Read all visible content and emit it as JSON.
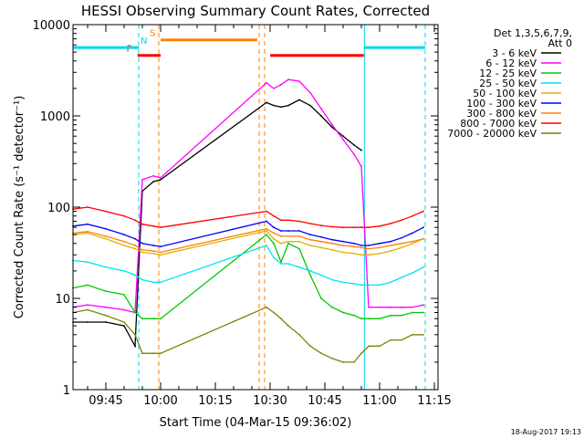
{
  "chart_data": {
    "type": "line",
    "title": "HESSI Observing Summary Count Rates, Corrected",
    "xlabel": "Start Time (04-Mar-15 09:36:02)",
    "ylabel": "Corrected Count Rate (s⁻¹ detector⁻¹)",
    "yscale": "log",
    "ylim": [
      1,
      10000
    ],
    "xlim_minutes_of_day": [
      576,
      676
    ],
    "x_ticks": [
      "09:45",
      "10:00",
      "10:15",
      "10:30",
      "10:45",
      "11:00",
      "11:15"
    ],
    "y_ticks": [
      "1",
      "10",
      "100",
      "1000",
      "10000"
    ],
    "legend_header": [
      "Det 1,3,5,6,7,9,",
      "Att 0"
    ],
    "legend_position": "right",
    "footer": "18-Aug-2017 19:13",
    "flags": [
      {
        "label": "F",
        "color": "#ff0000",
        "level": 4600,
        "segments": [
          [
            "09:53:40",
            "10:00:00"
          ],
          [
            "10:30:00",
            "10:55:40"
          ]
        ]
      },
      {
        "label": "N",
        "color": "#00d8e8",
        "level": 5600,
        "segments": [
          [
            "09:36:02",
            "09:54:00"
          ],
          [
            "10:55:40",
            "11:12:30"
          ]
        ]
      },
      {
        "label": "S",
        "color": "#ff8000",
        "level": 6800,
        "segments": [
          [
            "10:00:00",
            "10:26:30"
          ]
        ]
      }
    ],
    "vertical_lines": [
      {
        "time": "09:54:00",
        "color": "#00d8e8",
        "style": "dashed"
      },
      {
        "time": "09:59:30",
        "color": "#ff8000",
        "style": "dashed"
      },
      {
        "time": "10:27:00",
        "color": "#ff8000",
        "style": "dashed"
      },
      {
        "time": "10:28:30",
        "color": "#ff8000",
        "style": "dashed"
      },
      {
        "time": "10:55:50",
        "color": "#00d8e8",
        "style": "solid"
      },
      {
        "time": "11:12:30",
        "color": "#00d8e8",
        "style": "dashed"
      }
    ],
    "x": [
      "09:36",
      "09:40",
      "09:45",
      "09:50",
      "09:53",
      "09:55",
      "09:58",
      "10:00",
      "10:29",
      "10:31",
      "10:33",
      "10:35",
      "10:38",
      "10:41",
      "10:44",
      "10:47",
      "10:50",
      "10:53",
      "10:55",
      "10:57",
      "11:00",
      "11:03",
      "11:06",
      "11:09",
      "11:12"
    ],
    "series": [
      {
        "name": "3 - 6 keV",
        "color": "#000000",
        "values": [
          5.5,
          5.5,
          5.5,
          5,
          3,
          150,
          190,
          200,
          1400,
          1300,
          1250,
          1300,
          1500,
          1300,
          1000,
          750,
          600,
          480,
          420,
          null,
          null,
          null,
          null,
          null,
          null
        ]
      },
      {
        "name": "6 - 12 keV",
        "color": "#ff00ff",
        "values": [
          8,
          8.5,
          8,
          7.5,
          7,
          200,
          220,
          210,
          2300,
          2000,
          2200,
          2500,
          2400,
          1800,
          1200,
          800,
          550,
          380,
          280,
          8,
          8,
          8,
          8,
          8,
          8.5
        ]
      },
      {
        "name": "12 - 25 keV",
        "color": "#00c800",
        "values": [
          13,
          14,
          12,
          11,
          7,
          6,
          6,
          6,
          50,
          40,
          25,
          40,
          35,
          18,
          10,
          8,
          7,
          6.5,
          6,
          6,
          6,
          6.5,
          6.5,
          7,
          7
        ]
      },
      {
        "name": "25 - 50 keV",
        "color": "#00e5ee",
        "values": [
          26,
          25,
          22,
          20,
          18,
          16,
          15,
          15,
          38,
          28,
          24,
          24,
          22,
          20,
          18,
          16,
          15,
          14.5,
          14,
          14,
          14,
          15,
          17,
          19,
          22
        ]
      },
      {
        "name": "50 - 100 keV",
        "color": "#e0b000",
        "values": [
          50,
          52,
          45,
          38,
          35,
          32,
          31,
          30,
          55,
          45,
          40,
          42,
          42,
          38,
          36,
          34,
          32,
          31,
          30,
          30,
          31,
          33,
          36,
          40,
          45
        ]
      },
      {
        "name": "100 - 300 keV",
        "color": "#0000ff",
        "values": [
          62,
          65,
          58,
          50,
          45,
          40,
          38,
          37,
          70,
          60,
          55,
          55,
          55,
          50,
          47,
          44,
          42,
          40,
          38,
          38,
          40,
          42,
          46,
          52,
          60
        ]
      },
      {
        "name": "300 - 800 keV",
        "color": "#ff8000",
        "values": [
          52,
          54,
          48,
          42,
          38,
          34,
          33,
          32,
          58,
          52,
          48,
          48,
          48,
          44,
          42,
          40,
          38,
          37,
          36,
          35,
          36,
          38,
          40,
          42,
          45
        ]
      },
      {
        "name": "800 - 7000 keV",
        "color": "#ff0000",
        "values": [
          95,
          100,
          90,
          80,
          72,
          65,
          62,
          60,
          90,
          80,
          72,
          72,
          70,
          66,
          63,
          61,
          60,
          60,
          60,
          60,
          62,
          66,
          72,
          80,
          90
        ]
      },
      {
        "name": "7000 - 20000 keV",
        "color": "#808000",
        "values": [
          7,
          7.5,
          6.5,
          5.5,
          4,
          2.5,
          2.5,
          2.5,
          8,
          7,
          6,
          5,
          4,
          3,
          2.5,
          2.2,
          2,
          2,
          2.5,
          3,
          3,
          3.5,
          3.5,
          4,
          4
        ]
      }
    ]
  }
}
